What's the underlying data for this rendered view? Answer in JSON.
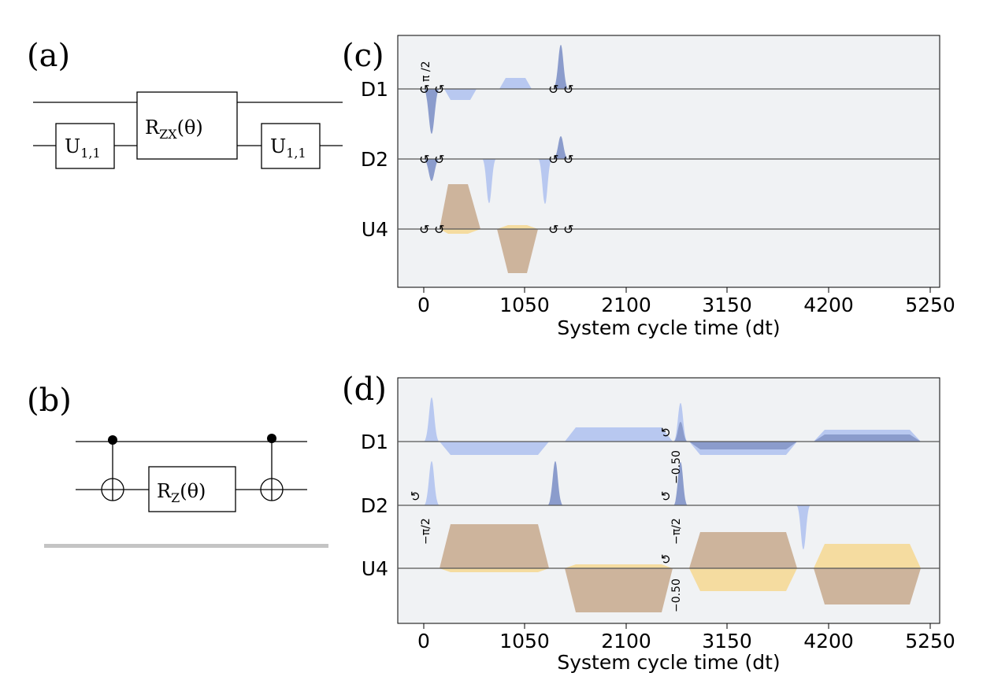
{
  "panels": {
    "a": {
      "label": "(a)",
      "gates": [
        {
          "name": "U",
          "sub": "1,1"
        },
        {
          "name": "R",
          "sub": "ZX",
          "arg": "(θ)"
        },
        {
          "name": "U",
          "sub": "1,1"
        }
      ]
    },
    "b": {
      "label": "(b)",
      "gates": [
        {
          "name": "R",
          "sub": "Z",
          "arg": "(θ)"
        }
      ]
    },
    "c": {
      "label": "(c)",
      "channels": [
        "D1",
        "D2",
        "U4"
      ],
      "xticks": [
        "0",
        "1050",
        "2100",
        "3150",
        "4200",
        "5250"
      ],
      "xlabel": "System cycle time (dt)",
      "annotations": [
        "π /2"
      ]
    },
    "d": {
      "label": "(d)",
      "channels": [
        "D1",
        "D2",
        "U4"
      ],
      "xticks": [
        "0",
        "1050",
        "2100",
        "3150",
        "4200",
        "5250"
      ],
      "xlabel": "System cycle time (dt)",
      "annotations": [
        "−π/2",
        "−0.50",
        "−π/2",
        "−0.50"
      ]
    }
  },
  "frame_change_glyph": "↺",
  "colors": {
    "background": "#f0f2f4",
    "drive_light": "#b8c8f0",
    "drive_dark": "#8b9ccc",
    "control_real": "#f5dca0",
    "control_imag": "#cdb49c"
  }
}
